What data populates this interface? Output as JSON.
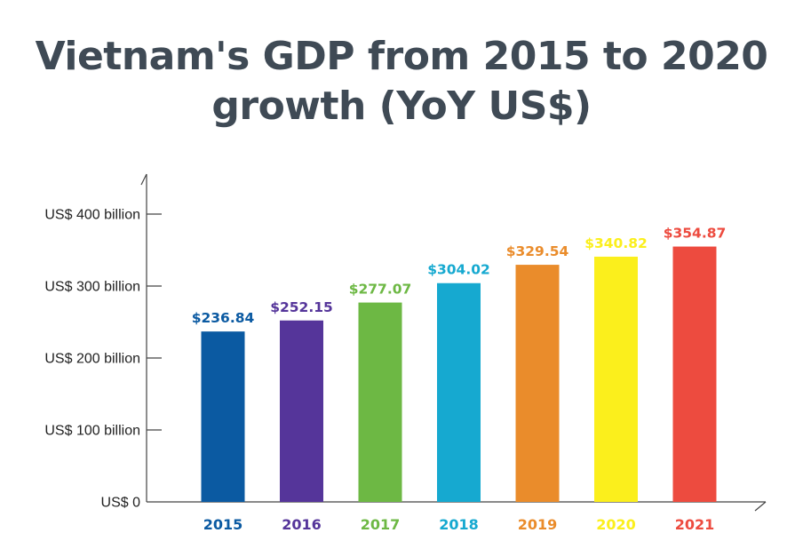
{
  "title": "Vietnam's GDP from 2015 to 2020 growth (YoY US$)",
  "chart_data": {
    "type": "bar",
    "title": "Vietnam's GDP from 2015 to 2020 growth (YoY US$)",
    "xlabel": "",
    "ylabel": "",
    "categories": [
      "2015",
      "2016",
      "2017",
      "2018",
      "2019",
      "2020",
      "2021"
    ],
    "values": [
      236.84,
      252.15,
      277.07,
      304.02,
      329.54,
      340.82,
      354.87
    ],
    "value_labels": [
      "$236.84",
      "$252.15",
      "$277.07",
      "$304.02",
      "$329.54",
      "$340.82",
      "$354.87"
    ],
    "colors": [
      "#0b5aa2",
      "#55359a",
      "#6db844",
      "#16a9d0",
      "#ea8c2b",
      "#fbef1c",
      "#ed4b3f"
    ],
    "yticks": [
      0,
      100,
      200,
      300,
      400
    ],
    "ytick_labels": [
      "US$ 0",
      "US$ 100 billion",
      "US$ 200 billion",
      "US$ 300 billion",
      "US$ 400 billion"
    ],
    "ylim": [
      0,
      400
    ],
    "grid": false,
    "legend": "none"
  }
}
